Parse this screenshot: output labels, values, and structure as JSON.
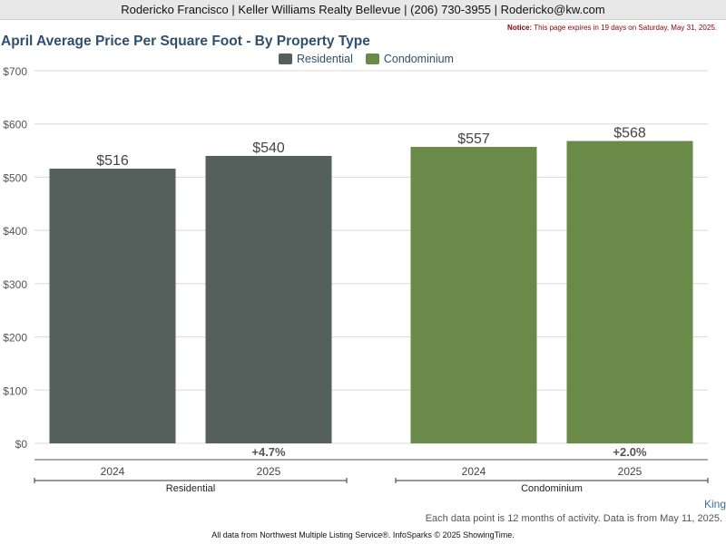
{
  "header": {
    "contact_line": "Rodericko Francisco | Keller Williams Realty Bellevue | (206) 730-3955 | Rodericko@kw.com"
  },
  "notice": {
    "label": "Notice:",
    "text": "This page expires in 19 days on Saturday, May 31, 2025."
  },
  "colors": {
    "residential": "#555f5b",
    "condominium": "#6a8a49",
    "title": "#2e4f6e",
    "grid": "#d9d9d9"
  },
  "chart_data": {
    "type": "bar",
    "title": "April Average Price Per Square Foot - By Property Type",
    "legend_position": "top-center",
    "grid": true,
    "ylim": [
      0,
      700
    ],
    "yticks": [
      0,
      100,
      200,
      300,
      400,
      500,
      600,
      700
    ],
    "ytick_labels": [
      "$0",
      "$100",
      "$200",
      "$300",
      "$400",
      "$500",
      "$600",
      "$700"
    ],
    "groups": [
      {
        "name": "Residential",
        "color_key": "residential",
        "change_label": "+4.7%",
        "bars": [
          {
            "category": "2024",
            "value": 516,
            "label": "$516"
          },
          {
            "category": "2025",
            "value": 540,
            "label": "$540"
          }
        ]
      },
      {
        "name": "Condominium",
        "color_key": "condominium",
        "change_label": "+2.0%",
        "bars": [
          {
            "category": "2024",
            "value": 557,
            "label": "$557"
          },
          {
            "category": "2025",
            "value": 568,
            "label": "$568"
          }
        ]
      }
    ]
  },
  "footer": {
    "geo": "King",
    "note": "Each data point is 12 months of activity. Data is from May 11, 2025.",
    "source": "All data from Northwest Multiple Listing Service®. InfoSparks © 2025 ShowingTime."
  }
}
